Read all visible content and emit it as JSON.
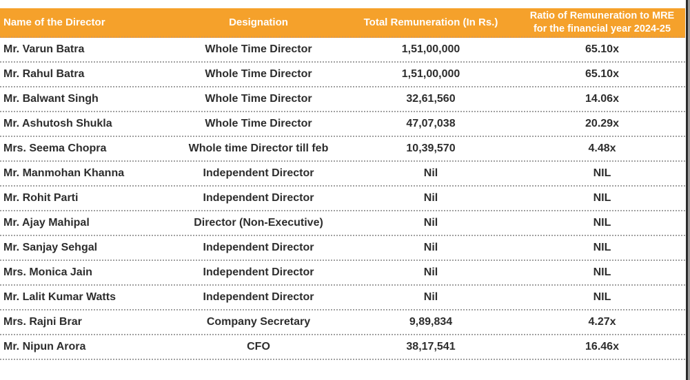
{
  "colors": {
    "header_bg": "#F5A12B",
    "header_text": "#FFFFFF",
    "body_text": "#2D2D2D",
    "divider": "#A0A0A0",
    "header_divider": "#D89A55",
    "edge_dark": "#2B2B2B",
    "edge_light": "#999999",
    "page_bg": "#FFFFFF"
  },
  "table": {
    "columns": [
      {
        "label": "Name of the Director",
        "align": "left"
      },
      {
        "label": "Designation",
        "align": "center"
      },
      {
        "label": "Total Remuneration (In Rs.)",
        "align": "center"
      },
      {
        "label": "Ratio of Remuneration to MRE\nfor the financial year 2024-25",
        "align": "center"
      }
    ],
    "rows": [
      [
        "Mr. Varun Batra",
        "Whole Time Director",
        "1,51,00,000",
        "65.10x"
      ],
      [
        "Mr. Rahul Batra",
        "Whole Time Director",
        "1,51,00,000",
        "65.10x"
      ],
      [
        "Mr. Balwant Singh",
        "Whole Time Director",
        "32,61,560",
        "14.06x"
      ],
      [
        "Mr. Ashutosh Shukla",
        "Whole Time Director",
        "47,07,038",
        "20.29x"
      ],
      [
        "Mrs. Seema Chopra",
        "Whole time Director till feb",
        "10,39,570",
        "4.48x"
      ],
      [
        "Mr. Manmohan Khanna",
        "Independent Director",
        "Nil",
        "NIL"
      ],
      [
        "Mr. Rohit Parti",
        "Independent Director",
        "Nil",
        "NIL"
      ],
      [
        "Mr. Ajay Mahipal",
        "Director (Non-Executive)",
        "Nil",
        "NIL"
      ],
      [
        "Mr. Sanjay Sehgal",
        "Independent Director",
        "Nil",
        "NIL"
      ],
      [
        "Mrs. Monica Jain",
        "Independent Director",
        "Nil",
        "NIL"
      ],
      [
        "Mr. Lalit Kumar Watts",
        "Independent Director",
        "Nil",
        "NIL"
      ],
      [
        "Mrs. Rajni Brar",
        "Company Secretary",
        "9,89,834",
        "4.27x"
      ],
      [
        "Mr. Nipun Arora",
        "CFO",
        "38,17,541",
        "16.46x"
      ]
    ]
  }
}
